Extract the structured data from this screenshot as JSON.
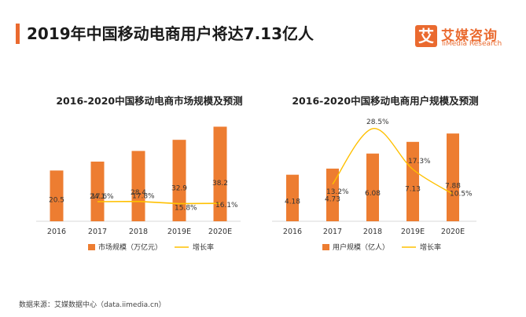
{
  "page_title": "2019年中国移动电商用户将达7.13亿人",
  "logo": {
    "icon_glyph": "艾",
    "name": "艾媒咨询",
    "sub": "iiMedia Research"
  },
  "source": "数据来源：艾媒数据中心（data.iimedia.cn）",
  "colors": {
    "bar": "#ed7d31",
    "line": "#ffc000",
    "accent": "#ea6a2f"
  },
  "chart_data": [
    {
      "type": "bar",
      "title": "2016-2020中国移动电商市场规模及预测",
      "categories": [
        "2016",
        "2017",
        "2018",
        "2019E",
        "2020E"
      ],
      "series": [
        {
          "name": "市场规模（万亿元）",
          "type": "bar",
          "values": [
            20.5,
            24.1,
            28.4,
            32.9,
            38.2
          ],
          "labels": [
            "20.5",
            "24.1",
            "28.4",
            "32.9",
            "38.2"
          ]
        },
        {
          "name": "增长率",
          "type": "line",
          "values": [
            null,
            17.6,
            17.8,
            15.8,
            16.1
          ],
          "labels": [
            "",
            "17.6%",
            "17.8%",
            "15.8%",
            "16.1%"
          ]
        }
      ],
      "bar_max": 45,
      "rate_range": [
        0,
        100
      ]
    },
    {
      "type": "bar",
      "title": "2016-2020中国移动电商用户规模及预测",
      "categories": [
        "2016",
        "2017",
        "2018",
        "2019E",
        "2020E"
      ],
      "series": [
        {
          "name": "用户规模（亿人）",
          "type": "bar",
          "values": [
            4.18,
            4.73,
            6.08,
            7.13,
            7.88
          ],
          "labels": [
            "4.18",
            "4.73",
            "6.08",
            "7.13",
            "7.88"
          ]
        },
        {
          "name": "增长率",
          "type": "line",
          "values": [
            null,
            13.2,
            28.5,
            17.3,
            10.5
          ],
          "labels": [
            "",
            "13.2%",
            "28.5%",
            "17.3%",
            "10.5%"
          ]
        }
      ],
      "bar_max": 9.3,
      "rate_range": [
        3,
        31.5
      ]
    }
  ]
}
